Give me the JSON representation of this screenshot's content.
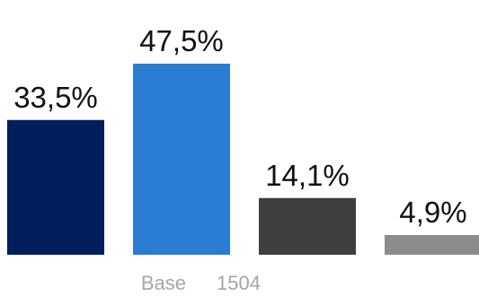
{
  "chart_data": {
    "type": "bar",
    "categories": [
      "",
      "",
      "",
      ""
    ],
    "values": [
      33.5,
      47.5,
      14.1,
      4.9
    ],
    "value_labels": [
      "33,5%",
      "47,5%",
      "14,1%",
      "4,9%"
    ],
    "bar_colors": [
      "#001f5c",
      "#2b7cd3",
      "#3f3f3f",
      "#8c8c8c"
    ],
    "title": "",
    "xlabel": "",
    "ylabel": "",
    "ylim": [
      0,
      47.5
    ],
    "grid": false,
    "legend": "none"
  },
  "footer": {
    "base_label": "Base",
    "base_value": "1504"
  }
}
